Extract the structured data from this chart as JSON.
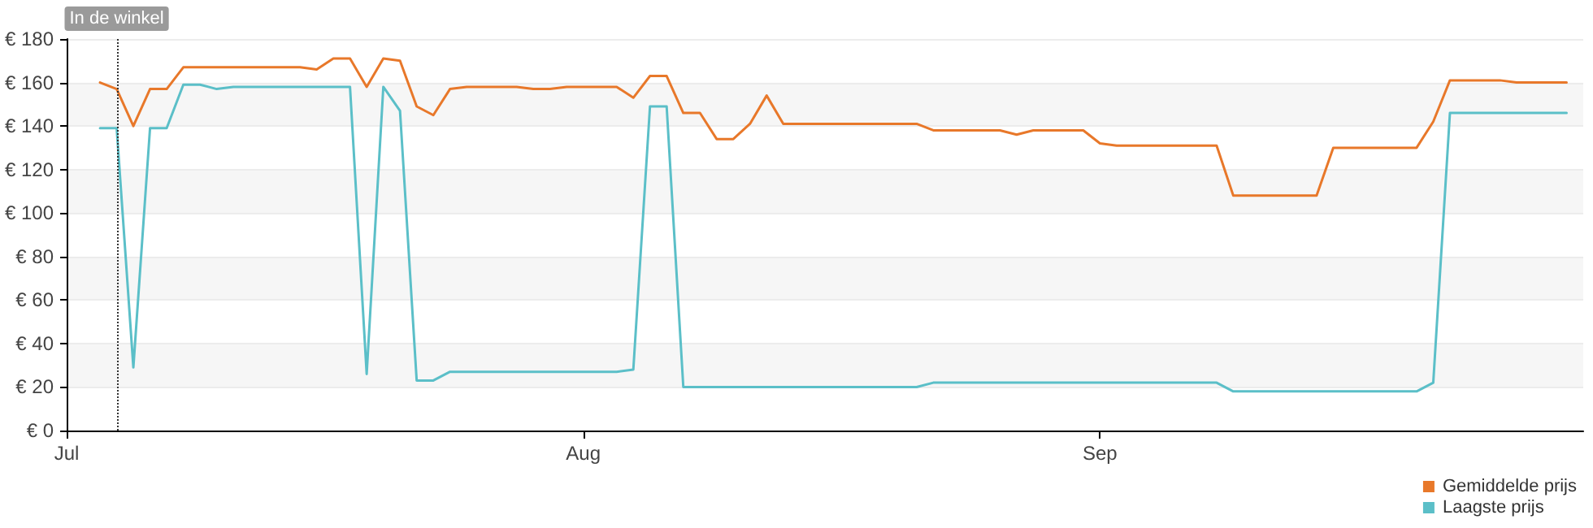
{
  "chart_data": {
    "type": "line",
    "x": [
      "--07-03",
      "--07-04",
      "--07-05",
      "--07-06",
      "--07-07",
      "--07-08",
      "--07-09",
      "--07-10",
      "--07-11",
      "--07-12",
      "--07-13",
      "--07-14",
      "--07-15",
      "--07-16",
      "--07-17",
      "--07-18",
      "--07-19",
      "--07-20",
      "--07-21",
      "--07-22",
      "--07-23",
      "--07-24",
      "--07-25",
      "--07-26",
      "--07-27",
      "--07-28",
      "--07-29",
      "--07-30",
      "--07-31",
      "--08-01",
      "--08-02",
      "--08-03",
      "--08-04",
      "--08-05",
      "--08-06",
      "--08-07",
      "--08-08",
      "--08-09",
      "--08-10",
      "--08-11",
      "--08-12",
      "--08-13",
      "--08-14",
      "--08-15",
      "--08-16",
      "--08-17",
      "--08-18",
      "--08-19",
      "--08-20",
      "--08-21",
      "--08-22",
      "--08-23",
      "--08-24",
      "--08-25",
      "--08-26",
      "--08-27",
      "--08-28",
      "--08-29",
      "--08-30",
      "--08-31",
      "--09-01",
      "--09-02",
      "--09-03",
      "--09-04",
      "--09-05",
      "--09-06",
      "--09-07",
      "--09-08",
      "--09-09",
      "--09-10",
      "--09-11",
      "--09-12",
      "--09-13",
      "--09-14",
      "--09-15",
      "--09-16",
      "--09-17",
      "--09-18",
      "--09-19",
      "--09-20",
      "--09-21",
      "--09-22",
      "--09-23",
      "--09-24",
      "--09-25",
      "--09-26",
      "--09-27",
      "--09-28",
      "--09-29"
    ],
    "series": [
      {
        "name": "Gemiddelde prijs",
        "color": "#e8782a",
        "values": [
          160,
          157,
          140,
          157,
          157,
          167,
          167,
          167,
          167,
          167,
          167,
          167,
          167,
          166,
          171,
          171,
          158,
          171,
          170,
          149,
          145,
          157,
          158,
          158,
          158,
          158,
          157,
          157,
          158,
          158,
          158,
          158,
          153,
          163,
          163,
          146,
          146,
          134,
          134,
          141,
          154,
          141,
          141,
          141,
          141,
          141,
          141,
          141,
          141,
          141,
          138,
          138,
          138,
          138,
          138,
          136,
          138,
          138,
          138,
          138,
          132,
          131,
          131,
          131,
          131,
          131,
          131,
          131,
          108,
          108,
          108,
          108,
          108,
          108,
          130,
          130,
          130,
          130,
          130,
          130,
          142,
          161,
          161,
          161,
          161,
          160,
          160,
          160,
          160
        ]
      },
      {
        "name": "Laagste prijs",
        "color": "#5bbfc8",
        "values": [
          139,
          139,
          29,
          139,
          139,
          159,
          159,
          157,
          158,
          158,
          158,
          158,
          158,
          158,
          158,
          158,
          26,
          158,
          147,
          23,
          23,
          27,
          27,
          27,
          27,
          27,
          27,
          27,
          27,
          27,
          27,
          27,
          28,
          149,
          149,
          20,
          20,
          20,
          20,
          20,
          20,
          20,
          20,
          20,
          20,
          20,
          20,
          20,
          20,
          20,
          22,
          22,
          22,
          22,
          22,
          22,
          22,
          22,
          22,
          22,
          22,
          22,
          22,
          22,
          22,
          22,
          22,
          22,
          18,
          18,
          18,
          18,
          18,
          18,
          18,
          18,
          18,
          18,
          18,
          18,
          22,
          146,
          146,
          146,
          146,
          146,
          146,
          146,
          146
        ]
      }
    ],
    "xlim": [
      "--07-01",
      "--09-30"
    ],
    "xticks": [
      {
        "value": "--07-01",
        "label": "Jul"
      },
      {
        "value": "--08-01",
        "label": "Aug"
      },
      {
        "value": "--09-01",
        "label": "Sep"
      }
    ],
    "ylim": [
      0,
      180
    ],
    "yticks": [
      {
        "value": 0,
        "label": "€ 0"
      },
      {
        "value": 20,
        "label": "€ 20"
      },
      {
        "value": 40,
        "label": "€ 40"
      },
      {
        "value": 60,
        "label": "€ 60"
      },
      {
        "value": 80,
        "label": "€ 80"
      },
      {
        "value": 100,
        "label": "€ 100"
      },
      {
        "value": 120,
        "label": "€ 120"
      },
      {
        "value": 140,
        "label": "€ 140"
      },
      {
        "value": 160,
        "label": "€ 160"
      },
      {
        "value": 180,
        "label": "€ 180"
      }
    ],
    "ref_lines": [
      {
        "axis": "x",
        "value": "--07-04",
        "label": "In de winkel",
        "color": "#333333",
        "line_style": "dotted"
      }
    ],
    "grid": "y",
    "legend": "bottom right",
    "marker": "none",
    "line_style": "solid"
  }
}
